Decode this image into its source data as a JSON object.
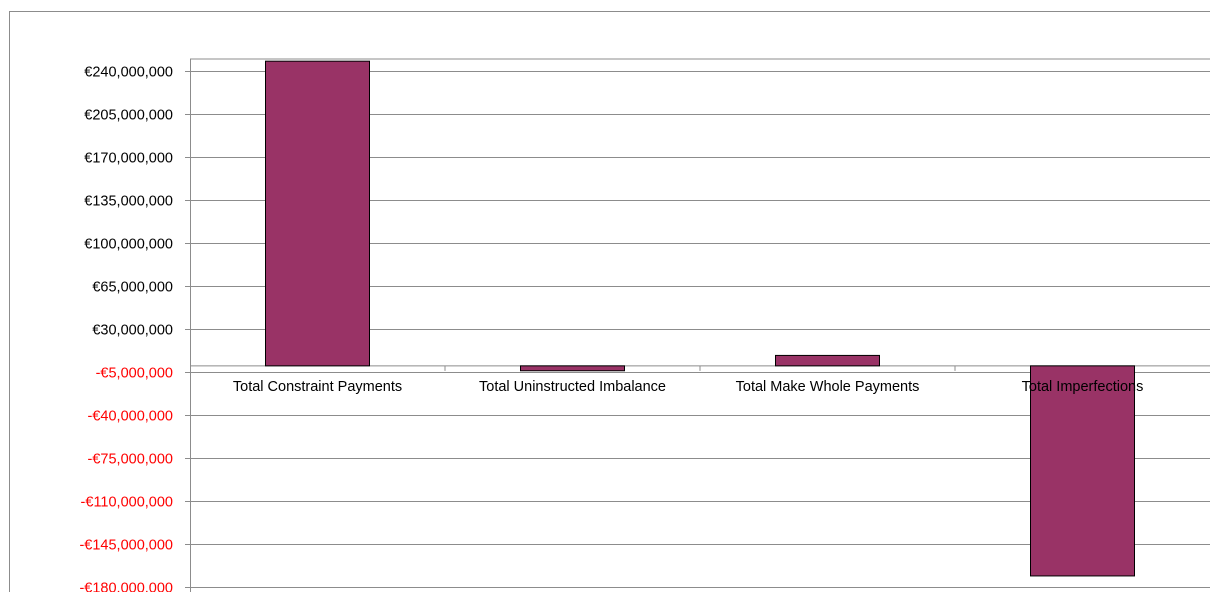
{
  "chart_data": {
    "type": "bar",
    "categories": [
      "Total Constraint Payments",
      "Total Uninstructed Imbalance",
      "Total Make Whole Payments",
      "Total Imperfections"
    ],
    "values": [
      248000000,
      -4000000,
      8500000,
      -171000000
    ],
    "y_ticks": [
      240000000,
      205000000,
      170000000,
      135000000,
      100000000,
      65000000,
      30000000,
      -5000000,
      -40000000,
      -75000000,
      -110000000,
      -145000000,
      -180000000
    ],
    "y_tick_labels": [
      "€240,000,000",
      "€205,000,000",
      "€170,000,000",
      "€135,000,000",
      "€100,000,000",
      "€65,000,000",
      "€30,000,000",
      "-€5,000,000",
      "-€40,000,000",
      "-€75,000,000",
      "-€110,000,000",
      "-€145,000,000",
      "-€180,000,000"
    ],
    "ylim": [
      -180000000,
      240000000
    ],
    "title": "",
    "xlabel": "",
    "ylabel": "",
    "grid": true,
    "legend": "none",
    "colors": {
      "bar_fill": "#993366",
      "bar_stroke": "#000000",
      "gridline": "#8c8c8c",
      "positive_tick": "#000000",
      "negative_tick": "#ff0000"
    }
  }
}
